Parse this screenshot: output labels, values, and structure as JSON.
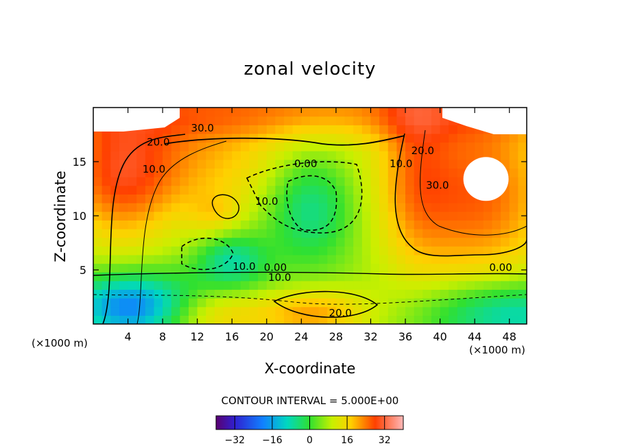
{
  "title": "zonal velocity",
  "chart_data": {
    "type": "heatmap",
    "title": "zonal velocity",
    "xlabel": "X-coordinate",
    "ylabel": "Z-coordinate",
    "x_unit": "(×1000 m)",
    "z_unit": "(×1000 m)",
    "xlim": [
      0,
      50
    ],
    "ylim": [
      0,
      20
    ],
    "x_ticks": [
      4,
      8,
      12,
      16,
      20,
      24,
      28,
      32,
      36,
      40,
      44,
      48
    ],
    "y_ticks": [
      5,
      10,
      15
    ],
    "contour_interval_text": "CONTOUR INTERVAL = 5.000E+00",
    "contour_labels": [
      {
        "text": "30.0",
        "x": 12.6,
        "z": 17.8
      },
      {
        "text": "20.0",
        "x": 7.5,
        "z": 16.5
      },
      {
        "text": "10.0",
        "x": 7.0,
        "z": 14.0
      },
      {
        "text": "0.00",
        "x": 24.5,
        "z": 14.5
      },
      {
        "text": "10.0",
        "x": 20.0,
        "z": 11.0
      },
      {
        "text": "20.0",
        "x": 38.0,
        "z": 15.7
      },
      {
        "text": "10.0",
        "x": 35.5,
        "z": 14.5
      },
      {
        "text": "30.0",
        "x": 39.7,
        "z": 12.5
      },
      {
        "text": "10.0",
        "x": 17.4,
        "z": 5.0
      },
      {
        "text": "0.00",
        "x": 21.0,
        "z": 4.9
      },
      {
        "text": "10.0",
        "x": 21.5,
        "z": 4.0
      },
      {
        "text": "20.0",
        "x": 28.5,
        "z": 0.7
      },
      {
        "text": "0.00",
        "x": 47.0,
        "z": 4.9
      }
    ],
    "colorbar": {
      "range": [
        -40,
        40
      ],
      "ticks": [
        -32,
        -16,
        0,
        16,
        32
      ],
      "tick_labels": [
        "−32",
        "−16",
        "0",
        "16",
        "32"
      ]
    }
  }
}
